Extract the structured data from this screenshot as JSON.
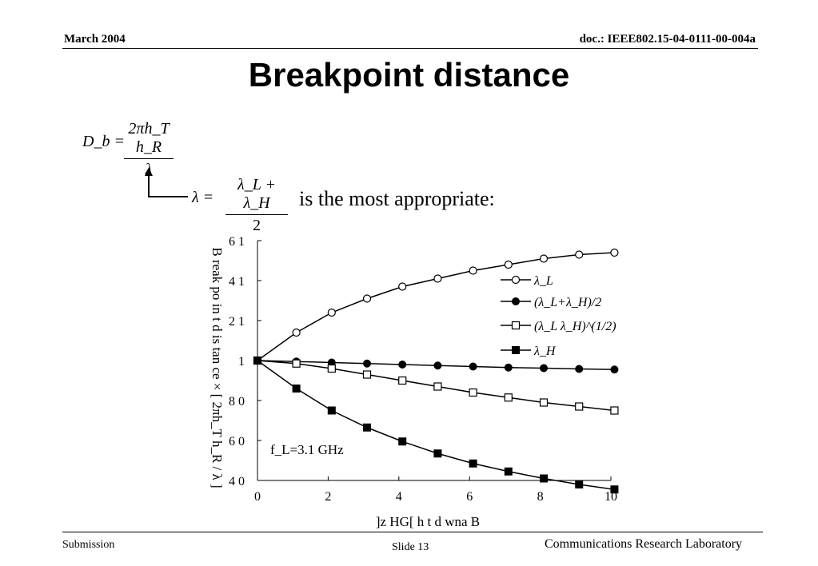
{
  "header": {
    "date": "March 2004",
    "doc_id": "doc.: IEEE802.15-04-0111-00-004a"
  },
  "title": "Breakpoint distance",
  "formula": {
    "lhs": "D_b =",
    "numerator": "2πh_T h_R",
    "denominator": "λ",
    "lambda_lhs": "λ =",
    "lambda_numerator": "λ_L + λ_H",
    "lambda_denominator": "2",
    "note": "is the most appropriate:"
  },
  "chart_data": {
    "type": "line",
    "xlabel": "]z HG[ h t d wna B",
    "ylabel": "B reak po in t d is tan ce  ×  [ 2πh_T h_R / λ ]",
    "xlim": [
      0,
      10
    ],
    "ylim": [
      0.4,
      1.6
    ],
    "x_ticks": [
      "0",
      "2",
      "4",
      "6",
      "8",
      "10"
    ],
    "y_ticks": [
      "4 0",
      "6 0",
      "8 0",
      "1",
      "2 1",
      "4 1",
      "6 1"
    ],
    "annotation": "f_L=3.1 GHz",
    "x": [
      0,
      1.1,
      2.1,
      3.1,
      4.1,
      5.1,
      6.1,
      7.1,
      8.1,
      9.1,
      10.1
    ],
    "series": [
      {
        "name": "λ_L",
        "marker": "open-circle",
        "values": [
          1.0,
          1.14,
          1.24,
          1.31,
          1.37,
          1.41,
          1.45,
          1.48,
          1.51,
          1.53,
          1.54
        ]
      },
      {
        "name": "(λ_L+λ_H)/2",
        "marker": "filled-circle",
        "values": [
          1.0,
          0.995,
          0.99,
          0.985,
          0.98,
          0.975,
          0.97,
          0.965,
          0.962,
          0.958,
          0.955
        ]
      },
      {
        "name": "(λ_L λ_H)^(1/2)",
        "marker": "open-square",
        "values": [
          1.0,
          0.985,
          0.96,
          0.93,
          0.9,
          0.87,
          0.84,
          0.815,
          0.79,
          0.77,
          0.75
        ]
      },
      {
        "name": "λ_H",
        "marker": "filled-square",
        "values": [
          1.0,
          0.86,
          0.75,
          0.665,
          0.595,
          0.535,
          0.485,
          0.445,
          0.41,
          0.38,
          0.355
        ]
      }
    ]
  },
  "footer": {
    "left": "Submission",
    "center": "Slide 13",
    "right": "Communications Research Laboratory"
  }
}
